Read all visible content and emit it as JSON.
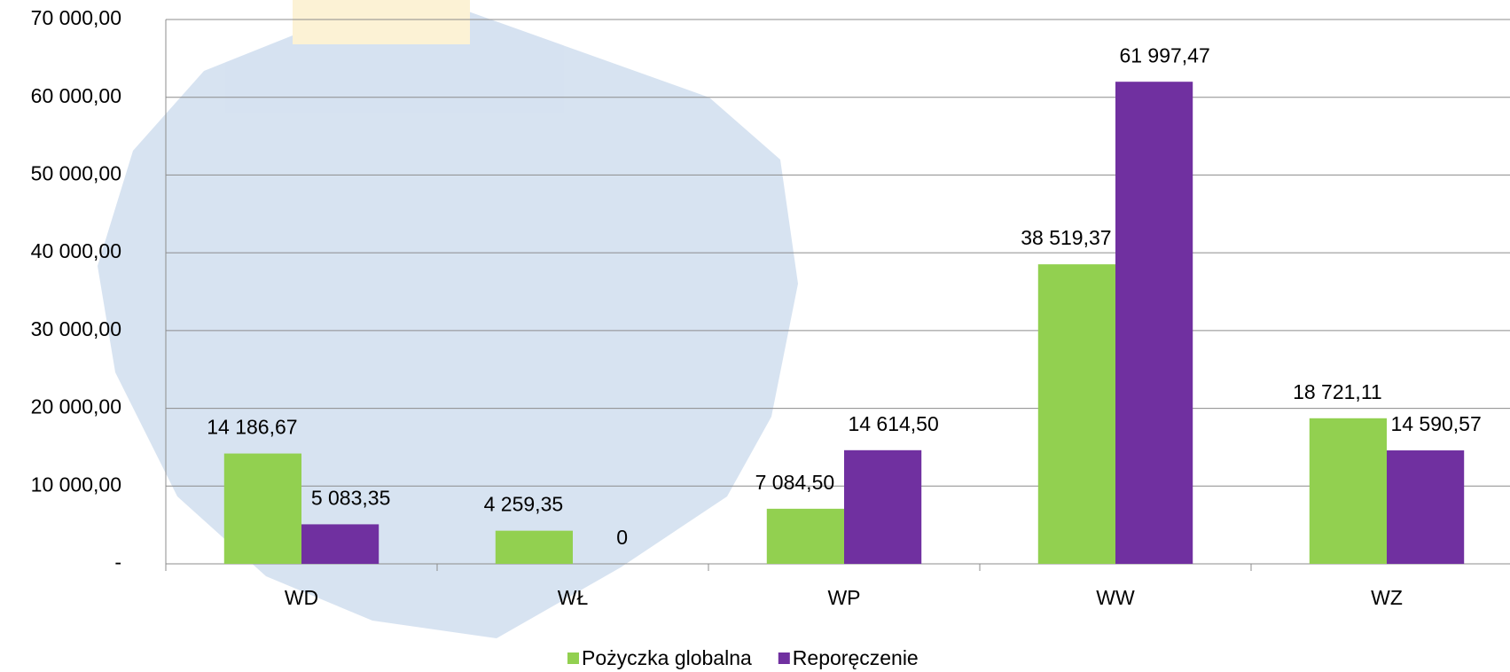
{
  "chart_data": {
    "type": "bar",
    "categories": [
      "WD",
      "WŁ",
      "WP",
      "WW",
      "WZ"
    ],
    "series": [
      {
        "name": "Pożyczka globalna",
        "color": "#92d050",
        "values": [
          14186.67,
          4259.35,
          7084.5,
          38519.37,
          18721.11
        ],
        "value_labels": [
          "14 186,67",
          "4 259,35",
          "7 084,50",
          "38 519,37",
          "18 721,11"
        ]
      },
      {
        "name": "Reporęczenie",
        "color": "#7030a0",
        "values": [
          5083.35,
          0,
          14614.5,
          61997.47,
          14590.57
        ],
        "value_labels": [
          "5 083,35",
          "0",
          "14 614,50",
          "61 997,47",
          "14 590,57"
        ]
      }
    ],
    "ylim": [
      0,
      70000
    ],
    "yticks": [
      {
        "value": 0,
        "label": "-"
      },
      {
        "value": 10000,
        "label": "10 000,00"
      },
      {
        "value": 20000,
        "label": "20 000,00"
      },
      {
        "value": 30000,
        "label": "30 000,00"
      },
      {
        "value": 40000,
        "label": "40 000,00"
      },
      {
        "value": 50000,
        "label": "50 000,00"
      },
      {
        "value": 60000,
        "label": "60 000,00"
      },
      {
        "value": 70000,
        "label": "70 000,00"
      }
    ],
    "grid": true,
    "legend": "bottom"
  }
}
